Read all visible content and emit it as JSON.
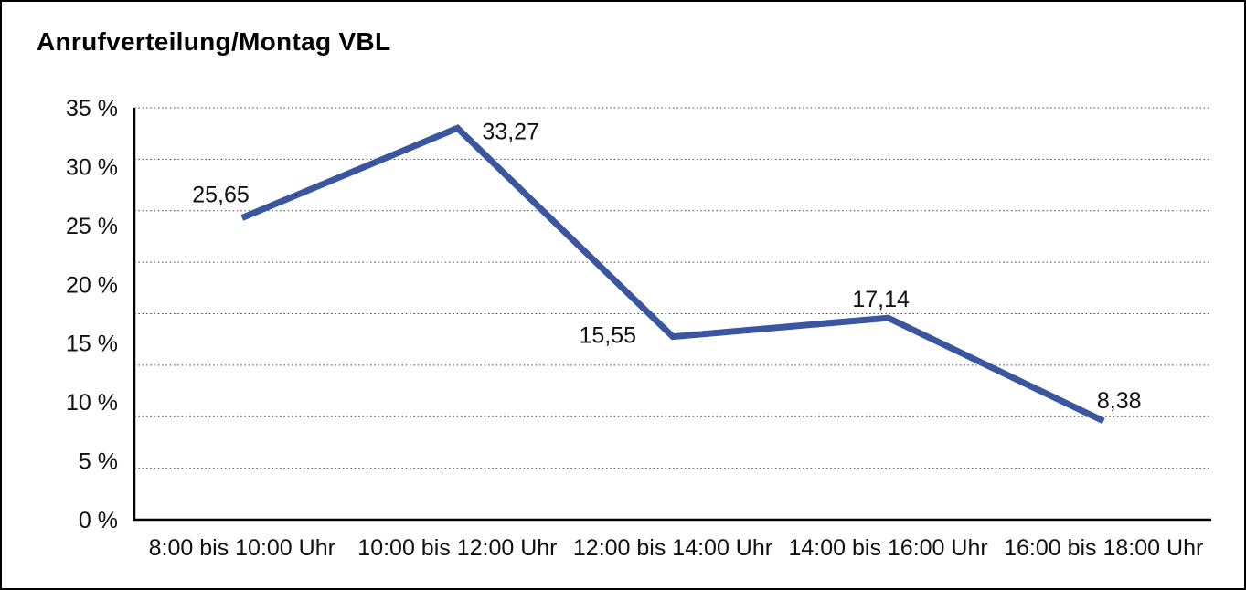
{
  "title": "Anrufverteilung/Montag VBL",
  "chart_data": {
    "type": "line",
    "title": "Anrufverteilung/Montag VBL",
    "categories": [
      "8:00 bis 10:00 Uhr",
      "10:00 bis 12:00 Uhr",
      "12:00 bis 14:00 Uhr",
      "14:00 bis 16:00 Uhr",
      "16:00 bis 18:00 Uhr"
    ],
    "values": [
      25.65,
      33.27,
      15.55,
      17.14,
      8.38
    ],
    "data_labels": [
      "25,65",
      "33,27",
      "15,55",
      "17,14",
      "8,38"
    ],
    "ylim": [
      0,
      35
    ],
    "yticks": [
      {
        "value": 0,
        "label": "0 %"
      },
      {
        "value": 5,
        "label": "5 %"
      },
      {
        "value": 10,
        "label": "10 %"
      },
      {
        "value": 15,
        "label": "15 %"
      },
      {
        "value": 20,
        "label": "20 %"
      },
      {
        "value": 25,
        "label": "25 %"
      },
      {
        "value": 30,
        "label": "30 %"
      },
      {
        "value": 35,
        "label": "35 %"
      }
    ],
    "grid": {
      "horizontal_divisions": 8,
      "style": "dotted"
    },
    "series_color": "#3A569E",
    "xlabel": "",
    "ylabel": "",
    "legend": "none"
  }
}
